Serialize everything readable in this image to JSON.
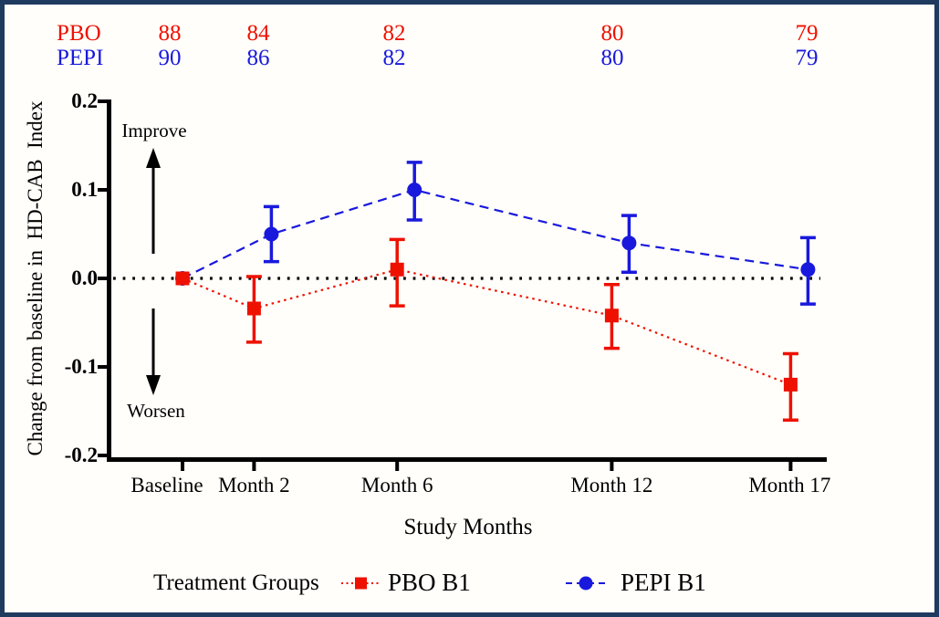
{
  "colors": {
    "red": "#ee1100",
    "blue": "#1919dd",
    "axis": "#000000",
    "frame_border": "#1f3a5f",
    "background": "#fffefa"
  },
  "header_table": {
    "rows": [
      {
        "label": "PBO",
        "color": "#ee1100",
        "values": [
          "88",
          "84",
          "82",
          "80",
          "79"
        ]
      },
      {
        "label": "PEPI",
        "color": "#1919dd",
        "values": [
          "90",
          "86",
          "82",
          "80",
          "79"
        ]
      }
    ]
  },
  "chart_data": {
    "type": "line",
    "title": "",
    "xlabel": "Study Months",
    "ylabel": "Change from baseline in  HD-CAB  Index",
    "categories": [
      "Baseline",
      "Month 2",
      "Month 6",
      "Month 12",
      "Month 17"
    ],
    "x_months": [
      0,
      2,
      6,
      12,
      17
    ],
    "ylim": [
      -0.2,
      0.2
    ],
    "y_ticks": [
      0.2,
      0.1,
      0.0,
      -0.1,
      -0.2
    ],
    "y_tick_labels": [
      "0.2",
      "0.1",
      "0.0",
      "-0.1",
      "-0.2"
    ],
    "zero_reference_line": true,
    "grid": false,
    "legend_position": "bottom",
    "series": [
      {
        "name": "PBO B1",
        "color": "#ee1100",
        "marker": "square",
        "line_style": "dotted",
        "values": [
          0.0,
          -0.034,
          0.01,
          -0.042,
          -0.12
        ],
        "ci_low": [
          null,
          -0.072,
          -0.031,
          -0.079,
          -0.16
        ],
        "ci_high": [
          null,
          0.002,
          0.044,
          -0.007,
          -0.085
        ]
      },
      {
        "name": "PEPI B1",
        "color": "#1919dd",
        "marker": "circle",
        "line_style": "dashed",
        "values": [
          0.0,
          0.05,
          0.1,
          0.04,
          0.01
        ],
        "ci_low": [
          null,
          0.019,
          0.066,
          0.007,
          -0.029
        ],
        "ci_high": [
          null,
          0.081,
          0.131,
          0.071,
          0.046
        ]
      }
    ],
    "annotations": {
      "improve": "Improve",
      "worsen": "Worsen"
    },
    "legend": {
      "title": "Treatment Groups"
    }
  }
}
